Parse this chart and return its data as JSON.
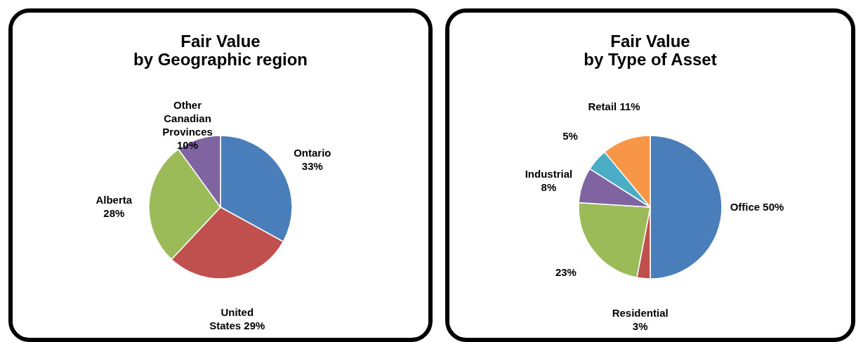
{
  "chart_data": [
    {
      "type": "pie",
      "title": [
        "Fair Value",
        "by Geographic region"
      ],
      "categories": [
        "Ontario",
        "United States",
        "Alberta",
        "Other Canadian Provinces"
      ],
      "values": [
        33,
        29,
        28,
        10
      ],
      "value_labels": [
        "33%",
        "29%",
        "28%",
        "10%"
      ],
      "colors": [
        "#4a7ebb",
        "#c0504d",
        "#9bbb59",
        "#8064a2"
      ],
      "legend": false
    },
    {
      "type": "pie",
      "title": [
        "Fair Value",
        "by Type of Asset"
      ],
      "categories": [
        "Office",
        "Residential",
        null,
        "Industrial",
        null,
        "Retail"
      ],
      "values": [
        50,
        3,
        23,
        8,
        5,
        11
      ],
      "value_labels": [
        "50%",
        "3%",
        "23%",
        "8%",
        "5%",
        "11%"
      ],
      "colors": [
        "#4a7ebb",
        "#c0504d",
        "#9bbb59",
        "#8064a2",
        "#4bacc6",
        "#f79646"
      ],
      "legend": false
    }
  ]
}
